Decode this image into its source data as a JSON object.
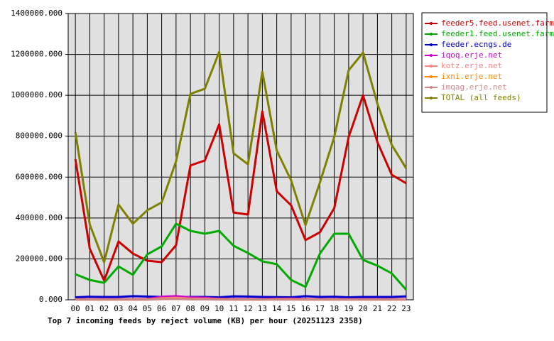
{
  "chart_data": {
    "type": "line",
    "title": "Top 7 incoming feeds by reject volume (KB) per hour (20251123 2358)",
    "categories": [
      "00",
      "01",
      "02",
      "03",
      "04",
      "05",
      "06",
      "07",
      "08",
      "09",
      "10",
      "11",
      "12",
      "13",
      "14",
      "15",
      "16",
      "17",
      "18",
      "19",
      "20",
      "21",
      "22",
      "23"
    ],
    "ylim": [
      0,
      1400000
    ],
    "yticks": [
      {
        "value": 0,
        "label": "0.000"
      },
      {
        "value": 200000,
        "label": "200000.000"
      },
      {
        "value": 400000,
        "label": "400000.000"
      },
      {
        "value": 600000,
        "label": "600000.000"
      },
      {
        "value": 800000,
        "label": "800000.000"
      },
      {
        "value": 1000000,
        "label": "1000000.000"
      },
      {
        "value": 1200000,
        "label": "1200000.000"
      },
      {
        "value": 1400000,
        "label": "1400000.000"
      }
    ],
    "grid": true,
    "series": [
      {
        "name": "feeder5.feed.usenet.farm",
        "color": "#cc0000",
        "values": [
          688000,
          250000,
          94000,
          285000,
          226000,
          191000,
          184000,
          267000,
          657000,
          681000,
          858000,
          427000,
          417000,
          921000,
          531000,
          462000,
          292000,
          330000,
          448000,
          796000,
          1000000,
          771000,
          611000,
          570000
        ]
      },
      {
        "name": "feeder1.feed.usenet.farm",
        "color": "#00aa00",
        "values": [
          125000,
          97000,
          83000,
          163000,
          122000,
          222000,
          261000,
          372000,
          337000,
          323000,
          337000,
          264000,
          229000,
          188000,
          174000,
          97000,
          63000,
          226000,
          323000,
          323000,
          195000,
          167000,
          129000,
          49000
        ]
      },
      {
        "name": "feeder.ecngs.de",
        "color": "#0000cc",
        "values": [
          12000,
          15000,
          14000,
          14000,
          18000,
          16000,
          14000,
          13000,
          14000,
          14000,
          12000,
          17000,
          16000,
          14000,
          13000,
          12000,
          18000,
          14000,
          15000,
          12000,
          14000,
          14000,
          14000,
          17000
        ]
      },
      {
        "name": "iqoq.erje.net",
        "color": "#cc00cc",
        "values": [
          3000,
          3000,
          3000,
          3000,
          3000,
          4000,
          15000,
          18000,
          12000,
          10000,
          5000,
          4000,
          4000,
          3000,
          5000,
          6000,
          4000,
          3000,
          3000,
          3000,
          3000,
          3000,
          3000,
          3000
        ]
      },
      {
        "name": "kotz.erje.net",
        "color": "#ff8080",
        "values": [
          2000,
          2000,
          2000,
          2000,
          2000,
          2000,
          8000,
          10000,
          6000,
          5000,
          3000,
          2000,
          2000,
          2000,
          3000,
          3000,
          2000,
          2000,
          2000,
          2000,
          2000,
          2000,
          2000,
          2000
        ]
      },
      {
        "name": "ixni.erje.net",
        "color": "#ff8800",
        "values": [
          1000,
          1000,
          1000,
          1000,
          1000,
          1000,
          4000,
          5000,
          3000,
          3000,
          2000,
          1000,
          1000,
          1000,
          2000,
          2000,
          1000,
          1000,
          1000,
          1000,
          1000,
          1000,
          1000,
          1000
        ]
      },
      {
        "name": "imqag.erje.net",
        "color": "#cc8888",
        "values": [
          1000,
          1000,
          1000,
          1000,
          1000,
          1000,
          3000,
          4000,
          2000,
          2000,
          1000,
          1000,
          1000,
          1000,
          1000,
          1000,
          1000,
          1000,
          1000,
          1000,
          1000,
          1000,
          1000,
          1000
        ]
      },
      {
        "name": "TOTAL (all feeds)",
        "color": "#808000",
        "values": [
          820000,
          368000,
          184000,
          466000,
          372000,
          438000,
          476000,
          677000,
          1007000,
          1032000,
          1212000,
          716000,
          663000,
          1115000,
          730000,
          584000,
          365000,
          573000,
          796000,
          1122000,
          1209000,
          959000,
          757000,
          643000
        ]
      }
    ]
  }
}
